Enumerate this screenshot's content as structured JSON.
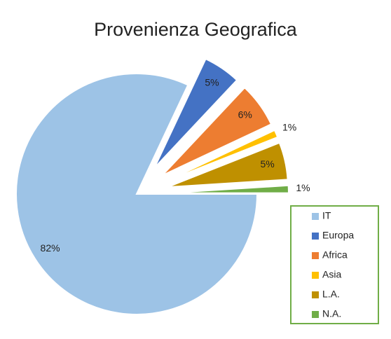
{
  "chart_data": {
    "type": "pie",
    "title": "Provenienza Geografica",
    "categories": [
      "IT",
      "Europa",
      "Africa",
      "Asia",
      "L.A.",
      "N.A."
    ],
    "values": [
      82,
      5,
      6,
      1,
      5,
      1
    ],
    "value_labels": [
      "82%",
      "5%",
      "6%",
      "1%",
      "5%",
      "1%"
    ],
    "colors": [
      "#9dc3e6",
      "#4472c4",
      "#ed7d31",
      "#ffc000",
      "#bf9000",
      "#70ad47"
    ],
    "legend": "right"
  }
}
